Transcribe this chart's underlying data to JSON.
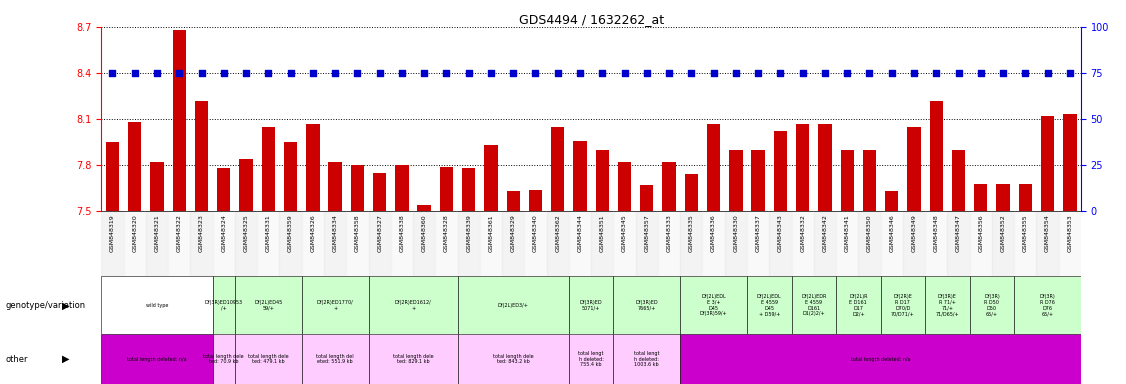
{
  "title": "GDS4494 / 1632262_at",
  "samples": [
    "GSM848319",
    "GSM848320",
    "GSM848321",
    "GSM848322",
    "GSM848323",
    "GSM848324",
    "GSM848325",
    "GSM848331",
    "GSM848359",
    "GSM848326",
    "GSM848334",
    "GSM848358",
    "GSM848327",
    "GSM848338",
    "GSM848360",
    "GSM848328",
    "GSM848339",
    "GSM848361",
    "GSM848329",
    "GSM848340",
    "GSM848362",
    "GSM848344",
    "GSM848351",
    "GSM848345",
    "GSM848357",
    "GSM848333",
    "GSM848335",
    "GSM848336",
    "GSM848330",
    "GSM848337",
    "GSM848343",
    "GSM848332",
    "GSM848342",
    "GSM848341",
    "GSM848350",
    "GSM848346",
    "GSM848349",
    "GSM848348",
    "GSM848347",
    "GSM848356",
    "GSM848352",
    "GSM848355",
    "GSM848354",
    "GSM848353"
  ],
  "bar_values": [
    7.95,
    8.08,
    7.82,
    8.68,
    8.22,
    7.78,
    7.84,
    8.05,
    7.95,
    8.07,
    7.82,
    7.8,
    7.75,
    7.8,
    7.54,
    7.79,
    7.78,
    7.93,
    7.63,
    7.64,
    8.05,
    7.96,
    7.9,
    7.82,
    7.67,
    7.82,
    7.74,
    8.07,
    7.9,
    7.9,
    8.02,
    8.07,
    8.07,
    7.9,
    7.9,
    7.63,
    8.05,
    8.22,
    7.9,
    7.68,
    7.68,
    7.68,
    8.12,
    8.13
  ],
  "percentile_values": [
    75,
    75,
    75,
    75,
    75,
    75,
    75,
    75,
    75,
    75,
    75,
    75,
    75,
    75,
    75,
    75,
    75,
    75,
    75,
    75,
    75,
    75,
    75,
    75,
    75,
    75,
    75,
    75,
    75,
    75,
    75,
    75,
    75,
    75,
    75,
    75,
    75,
    75,
    75,
    75,
    75,
    75,
    75,
    75
  ],
  "ylim_left": [
    7.5,
    8.7
  ],
  "ylim_right": [
    0,
    100
  ],
  "yticks_left": [
    7.5,
    7.8,
    8.1,
    8.4,
    8.7
  ],
  "yticks_right": [
    0,
    25,
    50,
    75,
    100
  ],
  "bar_color": "#cc0000",
  "dot_color": "#0000cc",
  "bg_color": "#ffffff",
  "genotype_groups": [
    {
      "label": "wild type",
      "start": 0,
      "end": 5,
      "color": "#ffffff"
    },
    {
      "label": "Df(3R)ED10953\n/+",
      "start": 5,
      "end": 6,
      "color": "#ccffcc"
    },
    {
      "label": "Df(2L)ED45\n59/+",
      "start": 6,
      "end": 9,
      "color": "#ccffcc"
    },
    {
      "label": "Df(2R)ED1770/\n+",
      "start": 9,
      "end": 12,
      "color": "#ccffcc"
    },
    {
      "label": "Df(2R)ED1612/\n+",
      "start": 12,
      "end": 16,
      "color": "#ccffcc"
    },
    {
      "label": "Df(2L)ED3/+",
      "start": 16,
      "end": 21,
      "color": "#ccffcc"
    },
    {
      "label": "Df(3R)ED\n5071/+",
      "start": 21,
      "end": 23,
      "color": "#ccffcc"
    },
    {
      "label": "Df(3R)ED\n7665/+",
      "start": 23,
      "end": 26,
      "color": "#ccffcc"
    },
    {
      "label": "Df(2L)EDL\nE 3/+\nD45\nDf(3R)59/+",
      "start": 26,
      "end": 29,
      "color": "#ccffcc"
    },
    {
      "label": "Df(2L)EDL\nE 4559\nD45\n+ D59/+",
      "start": 29,
      "end": 31,
      "color": "#ccffcc"
    },
    {
      "label": "Df(2L)EDR\nE 4559\nD161\nD1(2)2/+",
      "start": 31,
      "end": 33,
      "color": "#ccffcc"
    },
    {
      "label": "Df(2L)R\nE D161\nD17\nD2/+",
      "start": 33,
      "end": 35,
      "color": "#ccffcc"
    },
    {
      "label": "Df(2R)E\nR D17\nD70/D\n70/D71/+",
      "start": 35,
      "end": 37,
      "color": "#ccffcc"
    },
    {
      "label": "Df(3R)E\nR 71/+\n71/+\n71/D65/+",
      "start": 37,
      "end": 39,
      "color": "#ccffcc"
    },
    {
      "label": "Df(3R)\nR D50\nD50\n65/+",
      "start": 39,
      "end": 41,
      "color": "#ccffcc"
    },
    {
      "label": "Df(3R)\nR D76\nD76\n65/+",
      "start": 41,
      "end": 44,
      "color": "#ccffcc"
    }
  ],
  "other_groups": [
    {
      "label": "total length deleted: n/a",
      "start": 0,
      "end": 5,
      "color": "#cc00cc"
    },
    {
      "label": "total length dele\nted: 70.9 kb",
      "start": 5,
      "end": 6,
      "color": "#ffccff"
    },
    {
      "label": "total length dele\nted: 479.1 kb",
      "start": 6,
      "end": 9,
      "color": "#ffccff"
    },
    {
      "label": "total length del\neted: 551.9 kb",
      "start": 9,
      "end": 12,
      "color": "#ffccff"
    },
    {
      "label": "total length dele\nted: 829.1 kb",
      "start": 12,
      "end": 16,
      "color": "#ffccff"
    },
    {
      "label": "total length dele\nted: 843.2 kb",
      "start": 16,
      "end": 21,
      "color": "#ffccff"
    },
    {
      "label": "total lengt\nh deleted:\n755.4 kb",
      "start": 21,
      "end": 23,
      "color": "#ffccff"
    },
    {
      "label": "total lengt\nh deleted:\n1003.6 kb",
      "start": 23,
      "end": 26,
      "color": "#ffccff"
    },
    {
      "label": "total length deleted: n/a",
      "start": 26,
      "end": 44,
      "color": "#cc00cc"
    }
  ]
}
